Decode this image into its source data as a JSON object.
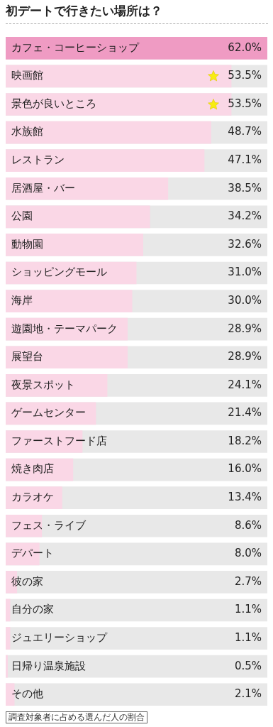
{
  "chart_data": {
    "type": "bar",
    "orientation": "horizontal",
    "title": "初デートで行きたい場所は？",
    "categories": [
      "カフェ・コーヒーショップ",
      "映画館",
      "景色が良いところ",
      "水族館",
      "レストラン",
      "居酒屋・バー",
      "公園",
      "動物園",
      "ショッピングモール",
      "海岸",
      "遊園地・テーマパーク",
      "展望台",
      "夜景スポット",
      "ゲームセンター",
      "ファーストフード店",
      "焼き肉店",
      "カラオケ",
      "フェス・ライブ",
      "デパート",
      "彼の家",
      "自分の家",
      "ジュエリーショップ",
      "日帰り温泉施設",
      "その他"
    ],
    "values": [
      62.0,
      53.5,
      53.5,
      48.7,
      47.1,
      38.5,
      34.2,
      32.6,
      31.0,
      30.0,
      28.9,
      28.9,
      24.1,
      21.4,
      18.2,
      16.0,
      13.4,
      8.6,
      8.0,
      2.7,
      1.1,
      1.1,
      0.5,
      2.1
    ],
    "value_labels": [
      "62.0%",
      "53.5%",
      "53.5%",
      "48.7%",
      "47.1%",
      "38.5%",
      "34.2%",
      "32.6%",
      "31.0%",
      "30.0%",
      "28.9%",
      "28.9%",
      "24.1%",
      "21.4%",
      "18.2%",
      "16.0%",
      "13.4%",
      "8.6%",
      "8.0%",
      "2.7%",
      "1.1%",
      "1.1%",
      "0.5%",
      "2.1%"
    ],
    "colors": [
      "#ef9bc3",
      "#fad7e6",
      "#fad7e6",
      "#fad7e6",
      "#fad7e6",
      "#fad7e6",
      "#fad7e6",
      "#fad7e6",
      "#fad7e6",
      "#fad7e6",
      "#fad7e6",
      "#fad7e6",
      "#fad7e6",
      "#fad7e6",
      "#fad7e6",
      "#fad7e6",
      "#fad7e6",
      "#fad7e6",
      "#fad7e6",
      "#fad7e6",
      "#fad7e6",
      "#fad7e6",
      "#fad7e6",
      "#fad7e6"
    ],
    "xlim": [
      0,
      62
    ],
    "tick_labels": false,
    "legend": false,
    "annotations": [
      "調査対象者に占める選んだ人の割合"
    ]
  }
}
